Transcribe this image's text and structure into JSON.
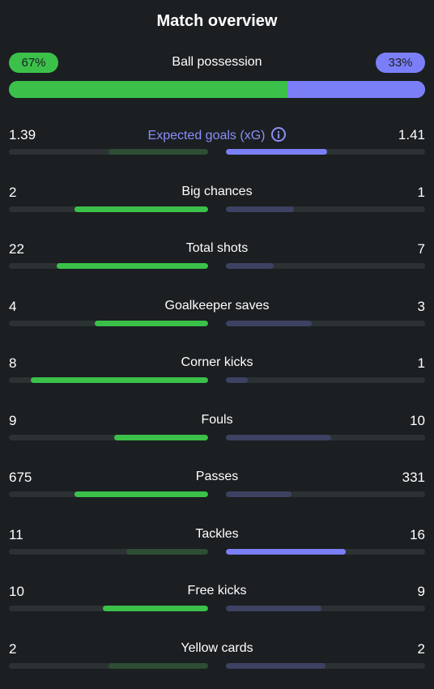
{
  "title": "Match overview",
  "possession": {
    "label": "Ball possession",
    "home": "67%",
    "away": "33%",
    "home_value": 67,
    "away_value": 33
  },
  "colors": {
    "home_strong": "#3bc14a",
    "home_muted": "#2e4d35",
    "away_strong": "#7b7ff7",
    "away_muted": "#3d4263",
    "track": "#2c3134"
  },
  "stats": [
    {
      "label": "Expected goals (xG)",
      "home": "1.39",
      "away": "1.41",
      "home_fill": 0.5,
      "away_fill": 0.51,
      "home_strong": false,
      "away_strong": true,
      "accent": true,
      "icon": "info-icon"
    },
    {
      "label": "Big chances",
      "home": "2",
      "away": "1",
      "home_fill": 0.67,
      "away_fill": 0.34,
      "home_strong": true,
      "away_strong": false
    },
    {
      "label": "Total shots",
      "home": "22",
      "away": "7",
      "home_fill": 0.76,
      "away_fill": 0.24,
      "home_strong": true,
      "away_strong": false
    },
    {
      "label": "Goalkeeper saves",
      "home": "4",
      "away": "3",
      "home_fill": 0.57,
      "away_fill": 0.43,
      "home_strong": true,
      "away_strong": false
    },
    {
      "label": "Corner kicks",
      "home": "8",
      "away": "1",
      "home_fill": 0.89,
      "away_fill": 0.11,
      "home_strong": true,
      "away_strong": false
    },
    {
      "label": "Fouls",
      "home": "9",
      "away": "10",
      "home_fill": 0.47,
      "away_fill": 0.53,
      "home_strong": true,
      "away_strong": false
    },
    {
      "label": "Passes",
      "home": "675",
      "away": "331",
      "home_fill": 0.67,
      "away_fill": 0.33,
      "home_strong": true,
      "away_strong": false
    },
    {
      "label": "Tackles",
      "home": "11",
      "away": "16",
      "home_fill": 0.41,
      "away_fill": 0.6,
      "home_strong": false,
      "away_strong": true
    },
    {
      "label": "Free kicks",
      "home": "10",
      "away": "9",
      "home_fill": 0.53,
      "away_fill": 0.48,
      "home_strong": true,
      "away_strong": false
    },
    {
      "label": "Yellow cards",
      "home": "2",
      "away": "2",
      "home_fill": 0.5,
      "away_fill": 0.5,
      "home_strong": false,
      "away_strong": false
    }
  ]
}
